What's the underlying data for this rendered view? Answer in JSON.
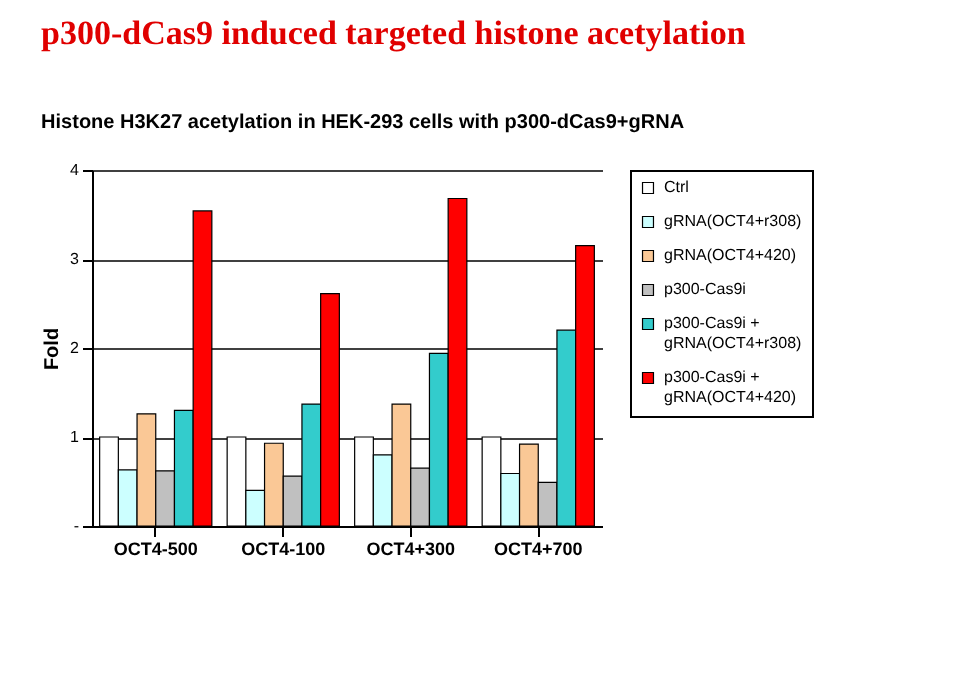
{
  "chart_data": {
    "type": "bar",
    "title": "p300-dCas9 induced targeted histone acetylation",
    "subtitle": "Histone H3K27 acetylation in HEK-293 cells with p300-dCas9+gRNA",
    "ylabel": "Fold",
    "categories": [
      "OCT4-500",
      "OCT4-100",
      "OCT4+300",
      "OCT4+700"
    ],
    "series": [
      {
        "name": "Ctrl",
        "color": "#ffffff",
        "values": [
          1,
          1,
          1,
          1
        ]
      },
      {
        "name": "gRNA(OCT4+r308)",
        "color": "#ccffff",
        "values": [
          0.63,
          0.4,
          0.8,
          0.59
        ]
      },
      {
        "name": "gRNA(OCT4+420)",
        "color": "#fac896",
        "values": [
          1.26,
          0.93,
          1.37,
          0.92
        ]
      },
      {
        "name": "p300-Cas9i",
        "color": "#c0c0c0",
        "values": [
          0.62,
          0.56,
          0.65,
          0.49
        ]
      },
      {
        "name": "p300-Cas9i + gRNA(OCT4+r308)",
        "color": "#33cccc",
        "values": [
          1.3,
          1.37,
          1.94,
          2.2
        ]
      },
      {
        "name": "p300-Cas9i + gRNA(OCT4+420)",
        "color": "#ff0000",
        "values": [
          3.54,
          2.61,
          3.68,
          3.15
        ]
      }
    ],
    "ylim": [
      0,
      4
    ],
    "yticks": [
      {
        "value": 0,
        "label": "-"
      },
      1,
      2,
      3,
      4
    ],
    "grid": "y",
    "legend": "right"
  }
}
